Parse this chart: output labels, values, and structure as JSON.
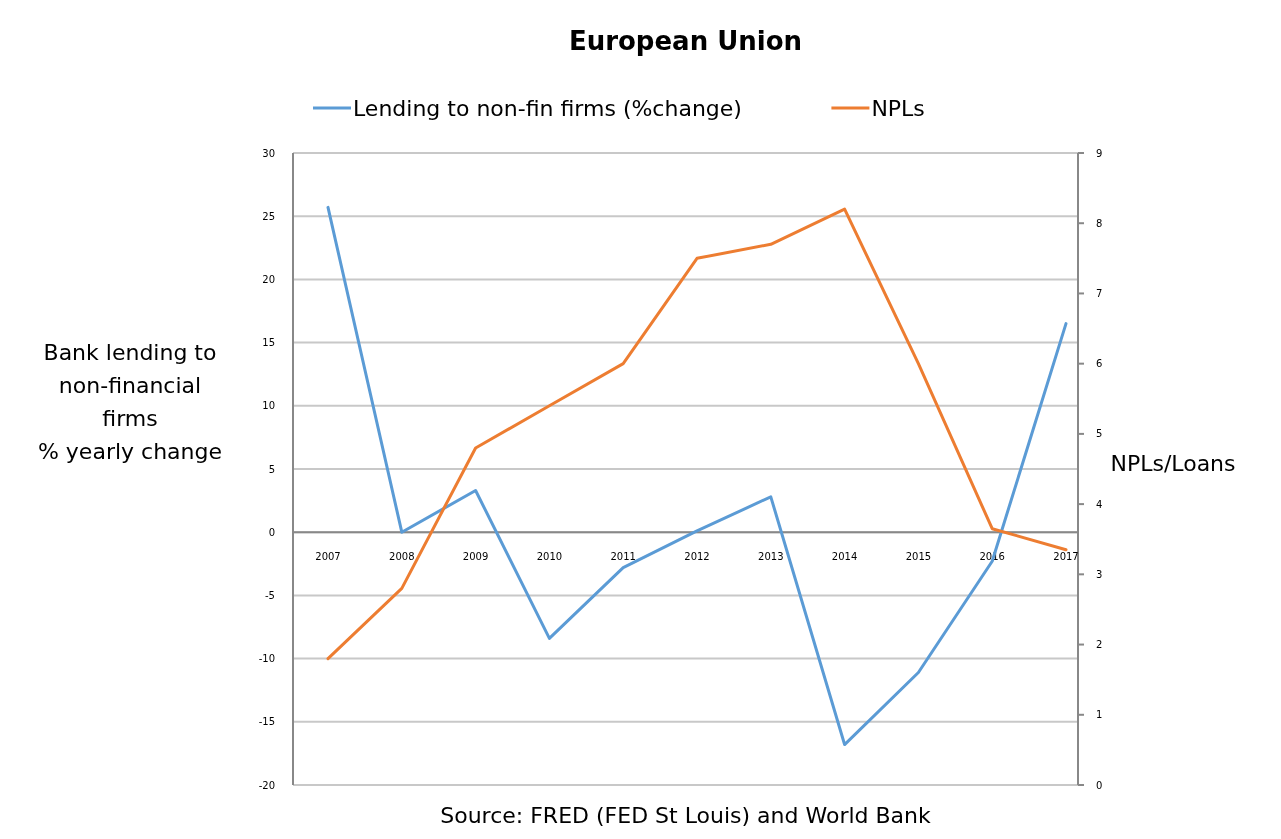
{
  "chart_data": {
    "type": "line",
    "title": "European Union",
    "categories": [
      "2007",
      "2008",
      "2009",
      "2010",
      "2011",
      "2012",
      "2013",
      "2014",
      "2015",
      "2016",
      "2017"
    ],
    "series": [
      {
        "name": "Lending to non-fin firms (%change)",
        "color": "#5b9bd5",
        "values": [
          25.7,
          0,
          3.3,
          -8.4,
          -2.8,
          0.1,
          2.8,
          -16.8,
          -11.1,
          -2.3,
          16.5
        ]
      },
      {
        "name": "NPLs",
        "color": "#ed7d31",
        "axis": "y2",
        "values": [
          1.8,
          2.8,
          4.8,
          5.4,
          6.0,
          7.5,
          7.7,
          8.2,
          6.0,
          3.65,
          3.35
        ]
      }
    ],
    "ylabel": "Bank lending to\nnon-financial\nfirms\n% yearly change",
    "y2label": "NPLs/Loans",
    "ylim": [
      -20,
      30
    ],
    "yticks": [
      -20,
      -15,
      -10,
      -5,
      0,
      5,
      10,
      15,
      20,
      25,
      30
    ],
    "y2lim": [
      0,
      9
    ],
    "y2ticks": [
      0,
      1,
      2,
      3,
      4,
      5,
      6,
      7,
      8,
      9
    ],
    "grid": "y",
    "legend": "top",
    "marker": "none",
    "line_style": "solid",
    "annotations": [
      "Source: FRED (FED St Louis) and World Bank"
    ]
  }
}
